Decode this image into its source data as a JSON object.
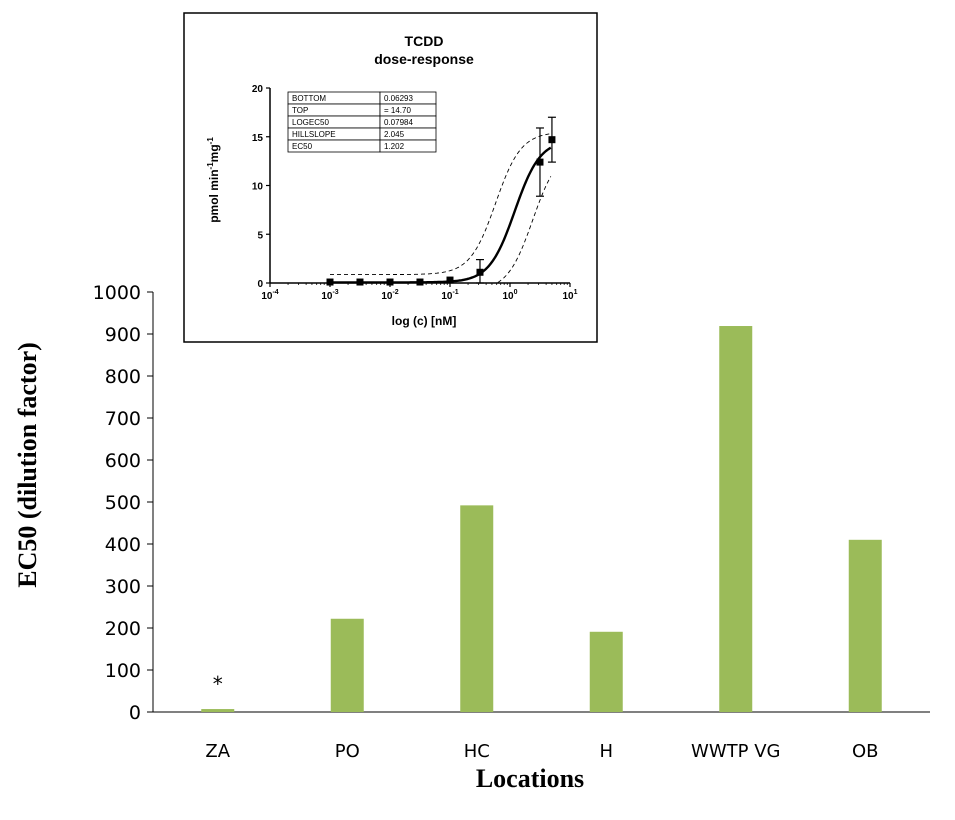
{
  "chart_data": [
    {
      "type": "bar",
      "categories": [
        "ZA",
        "PO",
        "HC",
        "H",
        "WWTP VG",
        "OB"
      ],
      "values": [
        7,
        222,
        492,
        191,
        919,
        410
      ],
      "color": "#9BBB59",
      "xlabel": "Locations",
      "ylabel": "EC50 (dilution factor)",
      "ylim": [
        0,
        1000
      ],
      "yticks": [
        0,
        100,
        200,
        300,
        400,
        500,
        600,
        700,
        800,
        900,
        1000
      ],
      "annotations": [
        {
          "category": "ZA",
          "text": "*"
        }
      ],
      "grid": false
    },
    {
      "type": "line",
      "title": "TCDD",
      "subtitle": "dose-response",
      "xlabel": "log (c) [nM]",
      "ylabel": "pmol min-1mg-1",
      "xscale": "log",
      "xlim": [
        0.0001,
        10
      ],
      "ylim": [
        0,
        20
      ],
      "yticks": [
        0,
        5,
        10,
        15,
        20
      ],
      "xticks": [
        {
          "base": "10",
          "exp": "-4"
        },
        {
          "base": "10",
          "exp": "-3"
        },
        {
          "base": "10",
          "exp": "-2"
        },
        {
          "base": "10",
          "exp": "-1"
        },
        {
          "base": "10",
          "exp": "0"
        },
        {
          "base": "10",
          "exp": "1"
        }
      ],
      "points": [
        {
          "x": 0.001,
          "y": 0.1,
          "err": 0
        },
        {
          "x": 0.00316,
          "y": 0.1,
          "err": 0
        },
        {
          "x": 0.01,
          "y": 0.1,
          "err": 0
        },
        {
          "x": 0.0316,
          "y": 0.1,
          "err": 0
        },
        {
          "x": 0.1,
          "y": 0.3,
          "err": 0
        },
        {
          "x": 0.316,
          "y": 1.1,
          "err": 1.3
        },
        {
          "x": 3.16,
          "y": 12.4,
          "err": 3.5
        },
        {
          "x": 5.0,
          "y": 14.7,
          "err": 2.3
        }
      ],
      "fit": {
        "bottom": 0.06293,
        "top": 14.7,
        "logec50": 0.07984,
        "hillslope": 2.045
      },
      "confidence_band": {
        "lower_shift": 0.3,
        "upper_shift": -0.32,
        "lower_offset": -0.9,
        "upper_offset": 0.8
      },
      "table": [
        {
          "param": "BOTTOM",
          "value": "0.06293"
        },
        {
          "param": "TOP",
          "value": "= 14.70"
        },
        {
          "param": "LOGEC50",
          "value": "0.07984"
        },
        {
          "param": "HILLSLOPE",
          "value": "2.045"
        },
        {
          "param": "EC50",
          "value": "1.202"
        }
      ]
    }
  ]
}
